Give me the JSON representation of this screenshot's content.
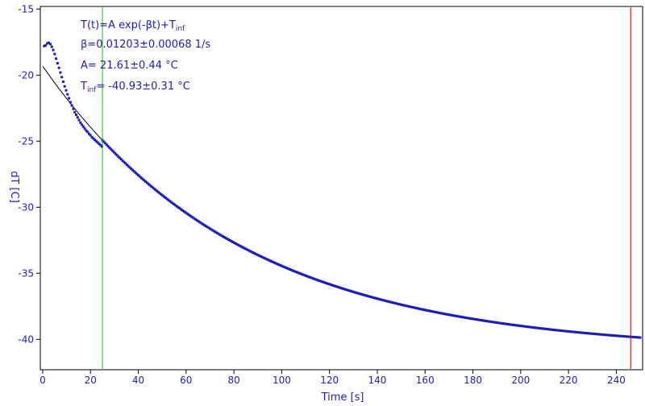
{
  "chart_data": {
    "type": "scatter",
    "xlabel": "Time [s]",
    "ylabel": "dT [C]",
    "xlim": [
      -1,
      251
    ],
    "ylim": [
      -42.3,
      -14.8
    ],
    "x_ticks": [
      0,
      20,
      40,
      60,
      80,
      100,
      120,
      140,
      160,
      180,
      200,
      220,
      240
    ],
    "y_ticks": [
      -15,
      -20,
      -25,
      -30,
      -35,
      -40
    ],
    "grid": false,
    "colors": {
      "axis_text": "#2020c0",
      "data_points": "#1a1acc",
      "fit_line": "#000000",
      "green_marker": "#00cc00",
      "red_marker": "#cc0000",
      "frame": "#000000"
    },
    "fit": {
      "A": 21.61,
      "beta": 0.01203,
      "T_inf": -40.93
    },
    "markers": {
      "green_x": 25,
      "red_x": 246
    },
    "data_points": {
      "x": [
        0.6,
        1.2,
        1.9,
        2.5,
        3.2,
        3.8,
        4.4,
        5.0,
        5.6,
        6.2,
        6.8,
        7.4,
        8.0,
        8.6,
        9.2,
        9.8,
        10.4,
        11.0,
        11.6,
        12.2,
        12.8,
        13.4,
        14.0,
        14.6,
        15.2,
        15.8,
        16.4,
        17.0,
        17.6,
        18.2,
        18.8,
        19.4,
        20.0,
        20.6,
        21.2,
        21.8,
        22.4,
        23.0,
        23.6,
        24.2,
        24.8
      ],
      "y": [
        -17.8,
        -17.75,
        -17.6,
        -17.55,
        -17.65,
        -17.85,
        -18.1,
        -18.4,
        -18.75,
        -19.1,
        -19.45,
        -19.8,
        -20.15,
        -20.5,
        -20.85,
        -21.15,
        -21.45,
        -21.75,
        -22.05,
        -22.3,
        -22.55,
        -22.8,
        -23.0,
        -23.2,
        -23.4,
        -23.6,
        -23.75,
        -23.9,
        -24.05,
        -24.2,
        -24.3,
        -24.45,
        -24.55,
        -24.7,
        -24.8,
        -24.9,
        -25.0,
        -25.1,
        -25.2,
        -25.3,
        -25.4
      ]
    },
    "fit_curve_range": [
      0,
      35
    ],
    "data_range_after_transient": [
      25,
      250
    ]
  },
  "annotations": {
    "line1_main": "T(t)=A exp(-βt)+T",
    "line1_sub": "inf",
    "line2": "β=0.01203±0.00068 1/s",
    "line3": "A= 21.61±0.44 °C",
    "line4_main": "T",
    "line4_sub": "inf",
    "line4_rest": "= -40.93±0.31 °C"
  }
}
